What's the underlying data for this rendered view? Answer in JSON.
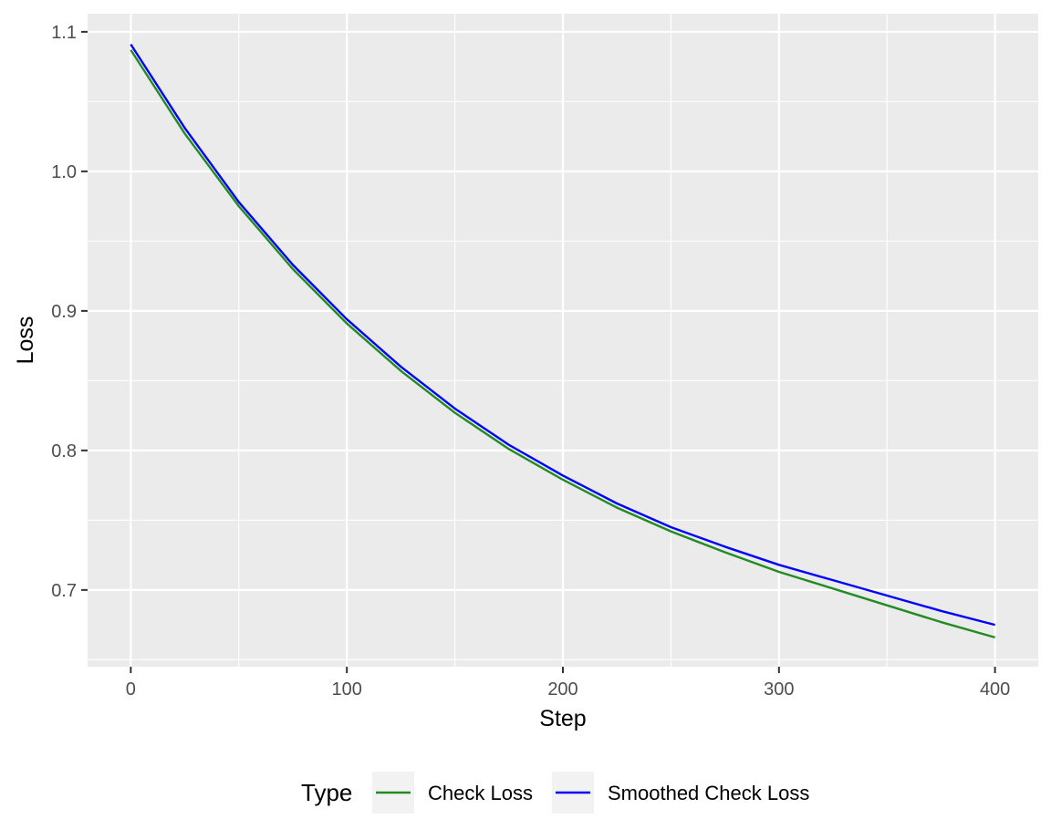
{
  "chart_data": {
    "type": "line",
    "xlabel": "Step",
    "ylabel": "Loss",
    "xlim": [
      -20,
      420
    ],
    "ylim": [
      0.645,
      1.113
    ],
    "x_ticks": [
      0,
      100,
      200,
      300,
      400
    ],
    "x_tick_labels": [
      "0",
      "100",
      "200",
      "300",
      "400"
    ],
    "y_ticks": [
      0.7,
      0.8,
      0.9,
      1.0,
      1.1
    ],
    "y_tick_labels": [
      "0.7",
      "0.8",
      "0.9",
      "1.0",
      "1.1"
    ],
    "grid": true,
    "legend": {
      "title": "Type",
      "position": "bottom"
    },
    "x": [
      0,
      25,
      50,
      75,
      100,
      125,
      150,
      175,
      200,
      225,
      250,
      275,
      300,
      325,
      350,
      375,
      400
    ],
    "series": [
      {
        "name": "Check Loss",
        "color": "#228b22",
        "values": [
          1.087,
          1.027,
          0.975,
          0.93,
          0.891,
          0.857,
          0.827,
          0.801,
          0.779,
          0.759,
          0.742,
          0.727,
          0.713,
          0.701,
          0.689,
          0.677,
          0.666
        ]
      },
      {
        "name": "Smoothed Check Loss",
        "color": "#0000ff",
        "values": [
          1.091,
          1.031,
          0.978,
          0.933,
          0.894,
          0.86,
          0.83,
          0.804,
          0.782,
          0.762,
          0.745,
          0.731,
          0.718,
          0.707,
          0.696,
          0.685,
          0.675
        ]
      }
    ]
  }
}
